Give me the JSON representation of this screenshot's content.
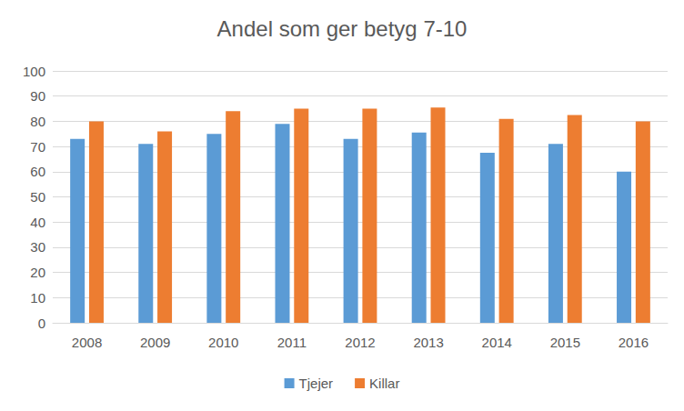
{
  "chart_data": {
    "type": "bar",
    "title": "Andel som ger betyg 7-10",
    "categories": [
      "2008",
      "2009",
      "2010",
      "2011",
      "2012",
      "2013",
      "2014",
      "2015",
      "2016"
    ],
    "series": [
      {
        "name": "Tjejer",
        "color": "#5b9bd5",
        "values": [
          73,
          71,
          75,
          79,
          73,
          75.5,
          67.5,
          71,
          60
        ]
      },
      {
        "name": "Killar",
        "color": "#ed7d31",
        "values": [
          80,
          76,
          84,
          85,
          85,
          85.5,
          81,
          82.5,
          80
        ]
      }
    ],
    "ylim": [
      0,
      100
    ],
    "yticks": [
      0,
      10,
      20,
      30,
      40,
      50,
      60,
      70,
      80,
      90,
      100
    ],
    "grid": true,
    "legend": "bottom"
  }
}
